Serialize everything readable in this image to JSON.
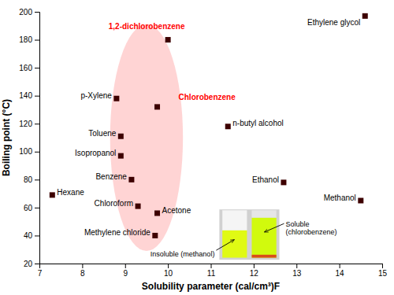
{
  "chart_data": {
    "type": "scatter",
    "x": [
      7.3,
      8.8,
      8.9,
      8.9,
      9.15,
      9.3,
      9.75,
      9.7,
      10.0,
      9.75,
      11.4,
      12.7,
      14.6,
      14.5
    ],
    "values": [
      69,
      138,
      111,
      97,
      80,
      61,
      56,
      40,
      180,
      132,
      118,
      78,
      197,
      65
    ],
    "point_labels": [
      "Hexane",
      "p-Xylene",
      "Toluene",
      "Isopropanol",
      "Benzene",
      "Chloroform",
      "Acetone",
      "Methylene chloride",
      "1,2-dichlorobenzene",
      "Chlorobenzene",
      "n-butyl alcohol",
      "Ethanol",
      "Ethylene glycol",
      "Methanol"
    ],
    "label_colors": [
      "black",
      "black",
      "black",
      "black",
      "black",
      "black",
      "black",
      "black",
      "red",
      "red",
      "black",
      "black",
      "black",
      "black"
    ],
    "color": "#3d0000",
    "marker": "square",
    "region": {
      "cx": 9.5,
      "cy": 110,
      "width": 1.7,
      "height": 162,
      "color": "#ffaaaa"
    },
    "xlim": [
      7,
      15
    ],
    "ylim": [
      20,
      200
    ],
    "xticks": [
      7,
      8,
      9,
      10,
      11,
      12,
      13,
      14,
      15
    ],
    "yticks": [
      20,
      40,
      60,
      80,
      100,
      120,
      140,
      160,
      180,
      200
    ],
    "xlabel": "Solubility parameter (cal/cm³)F",
    "ylabel": "Boiling point (°C)",
    "annotations": [
      "Insoluble (methanol)",
      "Soluble\n(chlorobenzene)"
    ],
    "grid": false
  }
}
